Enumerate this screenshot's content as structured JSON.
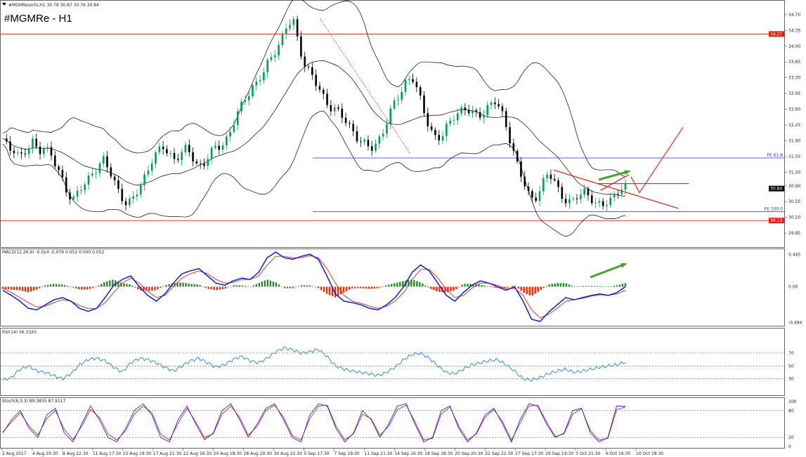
{
  "window": {
    "header_text": "#MGMResorts,H1  30.78 30.87 30.76 30.84",
    "title": "#MGMRe - H1"
  },
  "colors": {
    "background": "#ffffff",
    "bull_candle": "#00a050",
    "bear_candle": "#000000",
    "bands": "#000000",
    "resistance": "#e02010",
    "fib": "#2030c8",
    "macd_line": "#1020c8",
    "signal_line": "#e02020",
    "hist_pos": "#2a8a2a",
    "hist_neg": "#e03010",
    "rsi": "#3a88d8",
    "stoch_main": "#2030e0",
    "stoch_signal": "#e02020",
    "arrow": "#4aa02a"
  },
  "chart_data": [
    {
      "type": "candlestick",
      "name": "price",
      "title": "#MGMRe - H1",
      "ylim": [
        29.65,
        34.9
      ],
      "yticks": [
        "34.70",
        "34.35",
        "34.00",
        "33.65",
        "33.30",
        "32.95",
        "32.60",
        "32.25",
        "31.90",
        "31.55",
        "31.20",
        "30.90",
        "30.55",
        "30.20",
        "29.85"
      ],
      "price_tags": [
        {
          "label": "34.27",
          "value": 34.27,
          "color": "#e02010"
        },
        {
          "label": "30.84",
          "value": 30.84,
          "color": "#000000"
        },
        {
          "label": "30.13",
          "value": 30.13,
          "color": "#e02010"
        }
      ],
      "horizontal_lines": [
        {
          "value": 34.27,
          "color": "#e02010"
        },
        {
          "value": 30.13,
          "color": "#e02010"
        }
      ],
      "fib_levels": [
        {
          "label": "FE 61.8",
          "value": 31.52
        },
        {
          "label": "FE 100.0",
          "value": 30.33
        }
      ],
      "close_path": [
        31.9,
        31.7,
        31.75,
        31.55,
        31.65,
        31.85,
        31.7,
        31.8,
        31.6,
        31.3,
        31.05,
        30.75,
        30.6,
        30.8,
        30.95,
        31.2,
        31.35,
        31.45,
        31.2,
        30.95,
        30.7,
        30.45,
        30.6,
        30.85,
        31.15,
        31.45,
        31.6,
        31.75,
        31.65,
        31.5,
        31.6,
        31.7,
        31.55,
        31.35,
        31.4,
        31.6,
        31.75,
        31.85,
        32.0,
        32.3,
        32.6,
        32.9,
        33.1,
        33.2,
        33.4,
        33.7,
        33.95,
        34.15,
        34.45,
        34.55,
        34.0,
        33.6,
        33.35,
        33.1,
        32.9,
        32.7,
        32.6,
        32.45,
        32.3,
        32.15,
        31.95,
        31.8,
        31.7,
        31.85,
        32.1,
        32.4,
        32.7,
        32.95,
        33.25,
        33.35,
        32.95,
        32.55,
        32.2,
        32.0,
        31.95,
        32.2,
        32.45,
        32.6,
        32.6,
        32.5,
        32.45,
        32.55,
        32.7,
        32.75,
        32.55,
        32.2,
        31.75,
        31.25,
        30.9,
        30.6,
        30.7,
        30.95,
        31.15,
        31.0,
        30.75,
        30.6,
        30.5,
        30.65,
        30.8,
        30.7,
        30.5,
        30.4,
        30.55,
        30.7,
        30.85,
        30.84
      ],
      "dates": [
        "2 Aug 2017",
        "4 Aug 20:30",
        "8 Aug 22:30",
        "11 Aug 17:30",
        "15 Aug 19:30",
        "17 Aug 21:30",
        "22 Aug 16:30",
        "24 Aug 18:30",
        "28 Aug 20:30",
        "30 Aug 22:30",
        "5 Sep 17:30",
        "7 Sep 19:30",
        "11 Sep 21:30",
        "14 Sep 16:30",
        "18 Sep 18:30",
        "20 Sep 20:30",
        "22 Sep 22:30",
        "27 Sep 17:30",
        "29 Sep 19:30",
        "3 Oct 21:30",
        "6 Oct 16:30",
        "10 Oct 18:30"
      ]
    },
    {
      "type": "line",
      "name": "macd",
      "label": "MACD(12,26,9) -0.024 -0.076 0.052 0.000 0.052",
      "ylim": [
        -0.52,
        0.47
      ],
      "yticks": [
        "0.445",
        "0.00",
        "-0.494"
      ],
      "macd_path": [
        -0.05,
        -0.12,
        -0.2,
        -0.3,
        -0.32,
        -0.25,
        -0.18,
        -0.15,
        -0.2,
        -0.3,
        -0.34,
        -0.3,
        -0.15,
        0.02,
        0.1,
        0.15,
        0.0,
        -0.12,
        -0.2,
        -0.1,
        0.05,
        0.18,
        0.22,
        0.25,
        0.15,
        0.05,
        0.02,
        0.08,
        0.12,
        0.1,
        0.2,
        0.4,
        0.48,
        0.4,
        0.38,
        0.42,
        0.45,
        0.38,
        0.15,
        -0.1,
        -0.2,
        -0.22,
        -0.25,
        -0.3,
        -0.32,
        -0.25,
        -0.15,
        0.0,
        0.2,
        0.3,
        0.22,
        0.05,
        -0.12,
        -0.2,
        -0.08,
        0.02,
        0.08,
        0.05,
        0.0,
        -0.05,
        0.0,
        -0.2,
        -0.45,
        -0.48,
        -0.35,
        -0.25,
        -0.15,
        -0.18,
        -0.15,
        -0.12,
        -0.1,
        -0.12,
        -0.08,
        0.0
      ],
      "signal_path": [
        -0.02,
        -0.08,
        -0.15,
        -0.22,
        -0.28,
        -0.27,
        -0.22,
        -0.18,
        -0.2,
        -0.26,
        -0.3,
        -0.3,
        -0.22,
        -0.08,
        0.05,
        0.12,
        0.05,
        -0.06,
        -0.15,
        -0.12,
        0.0,
        0.12,
        0.18,
        0.22,
        0.18,
        0.1,
        0.05,
        0.06,
        0.1,
        0.1,
        0.15,
        0.3,
        0.42,
        0.42,
        0.4,
        0.4,
        0.43,
        0.4,
        0.25,
        0.05,
        -0.12,
        -0.2,
        -0.23,
        -0.27,
        -0.3,
        -0.27,
        -0.2,
        -0.08,
        0.1,
        0.24,
        0.24,
        0.12,
        -0.04,
        -0.15,
        -0.12,
        -0.02,
        0.05,
        0.05,
        0.02,
        -0.03,
        -0.02,
        -0.12,
        -0.32,
        -0.43,
        -0.38,
        -0.3,
        -0.2,
        -0.18,
        -0.16,
        -0.13,
        -0.11,
        -0.12,
        -0.1,
        -0.05
      ],
      "histogram": [
        -0.03,
        -0.04,
        -0.05,
        -0.08,
        -0.04,
        0.02,
        0.04,
        0.03,
        0.0,
        -0.04,
        -0.04,
        0.0,
        0.07,
        0.1,
        0.05,
        0.03,
        -0.05,
        -0.06,
        -0.05,
        0.02,
        0.05,
        0.06,
        0.04,
        0.03,
        -0.03,
        -0.05,
        -0.03,
        0.02,
        0.02,
        0.0,
        0.05,
        0.1,
        0.06,
        -0.02,
        -0.02,
        0.02,
        0.02,
        -0.02,
        -0.1,
        -0.15,
        -0.08,
        -0.02,
        -0.02,
        -0.03,
        -0.02,
        0.02,
        0.05,
        0.08,
        0.1,
        0.06,
        -0.02,
        -0.07,
        -0.08,
        -0.05,
        0.04,
        0.04,
        0.03,
        0.0,
        -0.02,
        -0.02,
        0.02,
        -0.08,
        -0.13,
        -0.05,
        0.03,
        0.05,
        0.05,
        0.0,
        0.01,
        0.01,
        0.01,
        0.0,
        0.02,
        0.05
      ]
    },
    {
      "type": "line",
      "name": "rsi",
      "label": "RSI(14) 56.3320",
      "ylim": [
        10,
        95
      ],
      "yticks": [
        "70",
        "50",
        "30"
      ],
      "levels": [
        70,
        50,
        30
      ],
      "values": [
        28,
        32,
        45,
        50,
        42,
        40,
        35,
        30,
        38,
        52,
        60,
        62,
        58,
        48,
        40,
        55,
        62,
        60,
        55,
        48,
        42,
        50,
        58,
        62,
        55,
        48,
        52,
        60,
        65,
        58,
        55,
        62,
        72,
        78,
        75,
        70,
        72,
        76,
        65,
        50,
        45,
        42,
        40,
        38,
        35,
        40,
        48,
        60,
        68,
        70,
        62,
        50,
        40,
        38,
        45,
        52,
        55,
        58,
        60,
        52,
        42,
        30,
        28,
        32,
        38,
        42,
        45,
        40,
        42,
        45,
        48,
        50,
        52,
        56
      ],
      "value_label": "56.3320"
    },
    {
      "type": "line",
      "name": "stochastic",
      "label": "Stoch(8,3,3) 89.3855 87.9117",
      "ylim": [
        0,
        100
      ],
      "yticks": [
        "100",
        "80",
        "20",
        "0"
      ],
      "levels": [
        80,
        20
      ],
      "main": [
        30,
        60,
        80,
        40,
        20,
        70,
        85,
        30,
        10,
        50,
        90,
        60,
        20,
        10,
        40,
        80,
        95,
        70,
        20,
        10,
        60,
        90,
        50,
        15,
        30,
        80,
        95,
        60,
        20,
        50,
        85,
        95,
        60,
        20,
        10,
        70,
        95,
        90,
        40,
        10,
        30,
        80,
        60,
        20,
        50,
        90,
        95,
        50,
        10,
        20,
        80,
        90,
        40,
        10,
        30,
        70,
        85,
        50,
        10,
        60,
        95,
        90,
        50,
        20,
        30,
        80,
        85,
        30,
        10,
        20,
        90,
        89
      ],
      "signal": [
        32,
        55,
        75,
        45,
        25,
        62,
        80,
        38,
        15,
        45,
        82,
        65,
        28,
        14,
        35,
        72,
        90,
        75,
        28,
        14,
        52,
        85,
        55,
        20,
        28,
        72,
        90,
        65,
        25,
        45,
        80,
        92,
        65,
        25,
        14,
        62,
        90,
        92,
        45,
        15,
        28,
        72,
        62,
        25,
        45,
        82,
        92,
        55,
        15,
        18,
        72,
        88,
        45,
        14,
        28,
        65,
        82,
        55,
        14,
        52,
        90,
        92,
        55,
        22,
        28,
        72,
        84,
        35,
        14,
        18,
        82,
        88
      ]
    }
  ]
}
